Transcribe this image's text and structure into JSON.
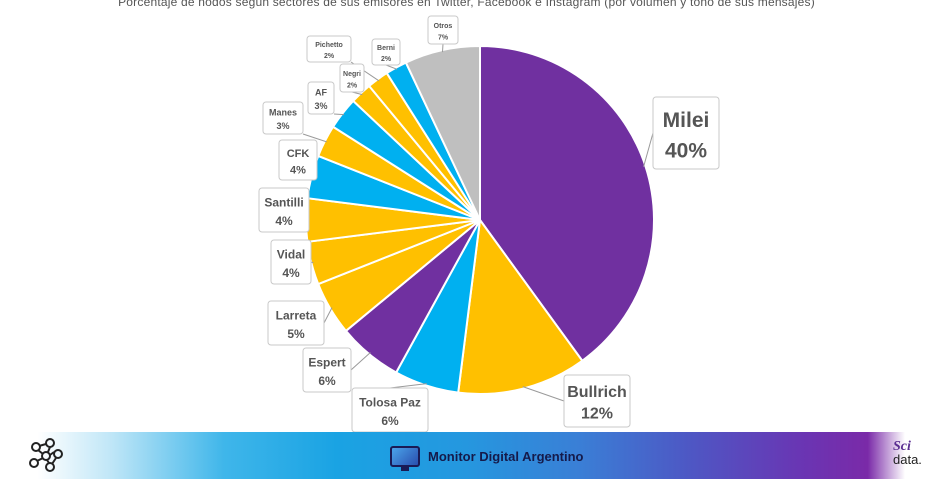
{
  "header": {
    "subtitle": "Porcentaje de nodos según sectores de sus emisores en Twitter, Facebook e Instagram (por volumen y tono de sus mensajes)"
  },
  "chart_data": {
    "type": "pie",
    "title": "",
    "slices": [
      {
        "name": "Milei",
        "label": "40%",
        "value": 40,
        "color": "#7030a0"
      },
      {
        "name": "Bullrich",
        "label": "12%",
        "value": 12,
        "color": "#ffc000"
      },
      {
        "name": "Tolosa Paz",
        "label": "6%",
        "value": 6,
        "color": "#00b0f0"
      },
      {
        "name": "Espert",
        "label": "6%",
        "value": 6,
        "color": "#7030a0"
      },
      {
        "name": "Larreta",
        "label": "5%",
        "value": 5,
        "color": "#ffc000"
      },
      {
        "name": "Vidal",
        "label": "4%",
        "value": 4,
        "color": "#ffc000"
      },
      {
        "name": "Santilli",
        "label": "4%",
        "value": 4,
        "color": "#ffc000"
      },
      {
        "name": "CFK",
        "label": "4%",
        "value": 4,
        "color": "#00b0f0"
      },
      {
        "name": "Manes",
        "label": "3%",
        "value": 3,
        "color": "#ffc000"
      },
      {
        "name": "AF",
        "label": "3%",
        "value": 3,
        "color": "#00b0f0"
      },
      {
        "name": "Negri",
        "label": "2%",
        "value": 2,
        "color": "#ffc000"
      },
      {
        "name": "Pichetto",
        "label": "2%",
        "value": 2,
        "color": "#ffc000"
      },
      {
        "name": "Berni",
        "label": "2%",
        "value": 2,
        "color": "#00b0f0"
      },
      {
        "name": "Otros",
        "label": "7%",
        "value": 7,
        "color": "#bfbfbf"
      }
    ]
  },
  "footer": {
    "brand": "Monitor Digital Argentino",
    "logo_top": "Sci",
    "logo_bottom": "data.",
    "icons": [
      "network-icon",
      "monitor-icon"
    ]
  }
}
